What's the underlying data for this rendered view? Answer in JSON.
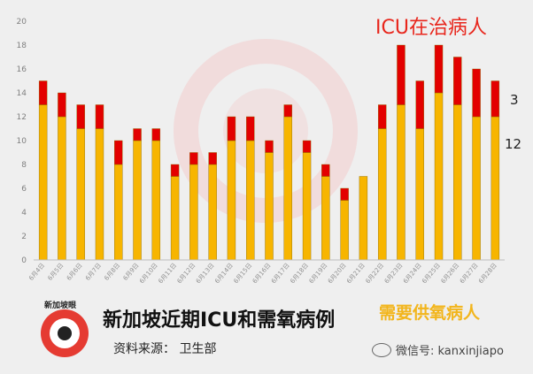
{
  "chart_data": {
    "type": "bar",
    "stacked": true,
    "title": "",
    "ylim": [
      0,
      20
    ],
    "yticks": [
      0,
      2,
      4,
      6,
      8,
      10,
      12,
      14,
      16,
      18,
      20
    ],
    "categories": [
      "6月4日",
      "6月5日",
      "6月6日",
      "6月7日",
      "6月8日",
      "6月9日",
      "6月10日",
      "6月11日",
      "6月12日",
      "6月13日",
      "6月14日",
      "6月15日",
      "6月16日",
      "6月17日",
      "6月18日",
      "6月19日",
      "6月20日",
      "6月21日",
      "6月22日",
      "6月23日",
      "6月24日",
      "6月25日",
      "6月26日",
      "6月27日",
      "6月28日"
    ],
    "series": [
      {
        "name": "需要供氧病人",
        "color": "#f7b500",
        "values": [
          13,
          12,
          11,
          11,
          8,
          10,
          10,
          7,
          8,
          8,
          10,
          10,
          9,
          12,
          9,
          7,
          5,
          7,
          11,
          13,
          11,
          14,
          13,
          12,
          12
        ]
      },
      {
        "name": "ICU在治病人",
        "color": "#e30000",
        "values": [
          2,
          2,
          2,
          2,
          2,
          1,
          1,
          1,
          1,
          1,
          2,
          2,
          1,
          1,
          1,
          1,
          1,
          0,
          2,
          5,
          4,
          4,
          4,
          4,
          3
        ]
      }
    ],
    "last_labels": {
      "top": "3",
      "bottom": "12"
    }
  },
  "page": {
    "title": "新加坡近期ICU和需氧病例",
    "source": "资料来源：  卫生部",
    "wechat": "微信号: kanxinjiapo",
    "logo_text": "新加坡眼",
    "watermark": "新加坡眼®"
  },
  "colors": {
    "oxygen": "#f7b500",
    "icu": "#e30000",
    "background": "#efefef"
  }
}
